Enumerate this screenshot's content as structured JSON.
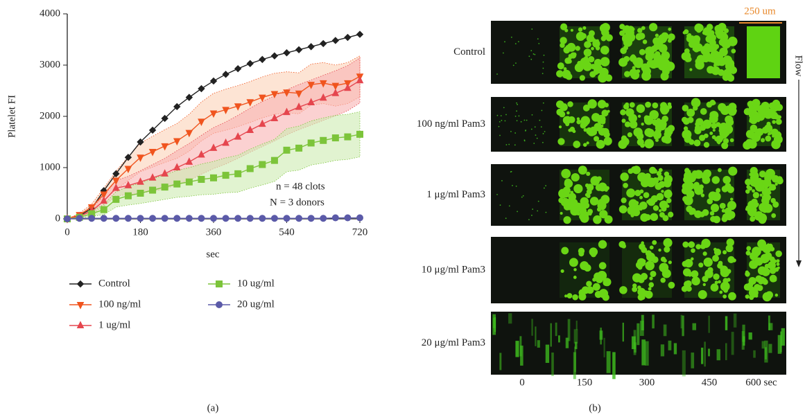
{
  "chart_data": {
    "type": "line",
    "y_label": "Platelet FI",
    "x_label": "sec",
    "x": [
      0,
      30,
      60,
      90,
      120,
      150,
      180,
      210,
      240,
      270,
      300,
      330,
      360,
      390,
      420,
      450,
      480,
      510,
      540,
      570,
      600,
      630,
      660,
      690,
      720
    ],
    "xlim": [
      0,
      720
    ],
    "xticks": [
      0,
      180,
      360,
      540,
      720
    ],
    "ylim": [
      0,
      4000
    ],
    "yticks": [
      0,
      1000,
      2000,
      3000,
      4000
    ],
    "legend_position": "bottom",
    "annotations": [
      "n = 48 clots",
      "N = 3 donors"
    ],
    "series": [
      {
        "name": "Control",
        "color": "#222222",
        "marker": "diamond",
        "values": [
          0,
          60,
          200,
          550,
          880,
          1200,
          1500,
          1730,
          1960,
          2190,
          2370,
          2540,
          2690,
          2820,
          2930,
          3030,
          3110,
          3180,
          3240,
          3300,
          3360,
          3420,
          3480,
          3540,
          3600
        ]
      },
      {
        "name": "100 ng/ml",
        "color": "#f0541e",
        "marker": "triangle-down",
        "band_color": "#fbd2b8",
        "values": [
          0,
          80,
          230,
          480,
          750,
          980,
          1200,
          1310,
          1420,
          1520,
          1680,
          1900,
          2060,
          2130,
          2200,
          2280,
          2370,
          2440,
          2470,
          2450,
          2620,
          2650,
          2600,
          2650,
          2780
        ],
        "errors": [
          0,
          30,
          60,
          120,
          180,
          230,
          280,
          300,
          320,
          340,
          360,
          380,
          390,
          400,
          400,
          400,
          400,
          400,
          400,
          400,
          400,
          400,
          400,
          400,
          400
        ]
      },
      {
        "name": "1 ug/ml",
        "color": "#e5464e",
        "marker": "triangle-up",
        "band_color": "#f8b3b3",
        "values": [
          0,
          50,
          150,
          350,
          600,
          650,
          720,
          800,
          880,
          1000,
          1110,
          1250,
          1380,
          1480,
          1600,
          1730,
          1850,
          1960,
          2080,
          2180,
          2270,
          2360,
          2450,
          2550,
          2700
        ],
        "errors": [
          0,
          30,
          60,
          100,
          150,
          180,
          220,
          260,
          300,
          330,
          360,
          380,
          400,
          410,
          420,
          430,
          440,
          440,
          440,
          440,
          440,
          440,
          440,
          440,
          440
        ]
      },
      {
        "name": "10 ug/ml",
        "color": "#7cc43a",
        "marker": "square",
        "band_color": "#cdebb0",
        "values": [
          0,
          30,
          100,
          180,
          380,
          450,
          500,
          560,
          620,
          680,
          720,
          770,
          800,
          850,
          880,
          980,
          1060,
          1140,
          1340,
          1380,
          1480,
          1530,
          1580,
          1600,
          1650
        ],
        "errors": [
          0,
          20,
          50,
          100,
          150,
          180,
          200,
          220,
          240,
          260,
          280,
          300,
          320,
          340,
          360,
          380,
          400,
          410,
          420,
          430,
          430,
          440,
          440,
          440,
          440
        ]
      },
      {
        "name": "20 ug/ml",
        "color": "#5b5aa8",
        "marker": "circle",
        "values": [
          0,
          10,
          10,
          10,
          10,
          10,
          10,
          10,
          10,
          10,
          10,
          10,
          10,
          10,
          10,
          10,
          10,
          10,
          10,
          10,
          10,
          10,
          20,
          20,
          20
        ]
      }
    ]
  },
  "panel_b": {
    "row_labels": [
      "Control",
      "100 ng/ml Pam3",
      "1 μg/ml Pam3",
      "10 μg/ml Pam3",
      "20 μg/ml Pam3"
    ],
    "column_labels": [
      "0",
      "150",
      "300",
      "450",
      "600 sec"
    ],
    "scale_bar": "250 um",
    "flow_label": "Flow"
  },
  "panel_labels": [
    "(a)",
    "(b)"
  ]
}
